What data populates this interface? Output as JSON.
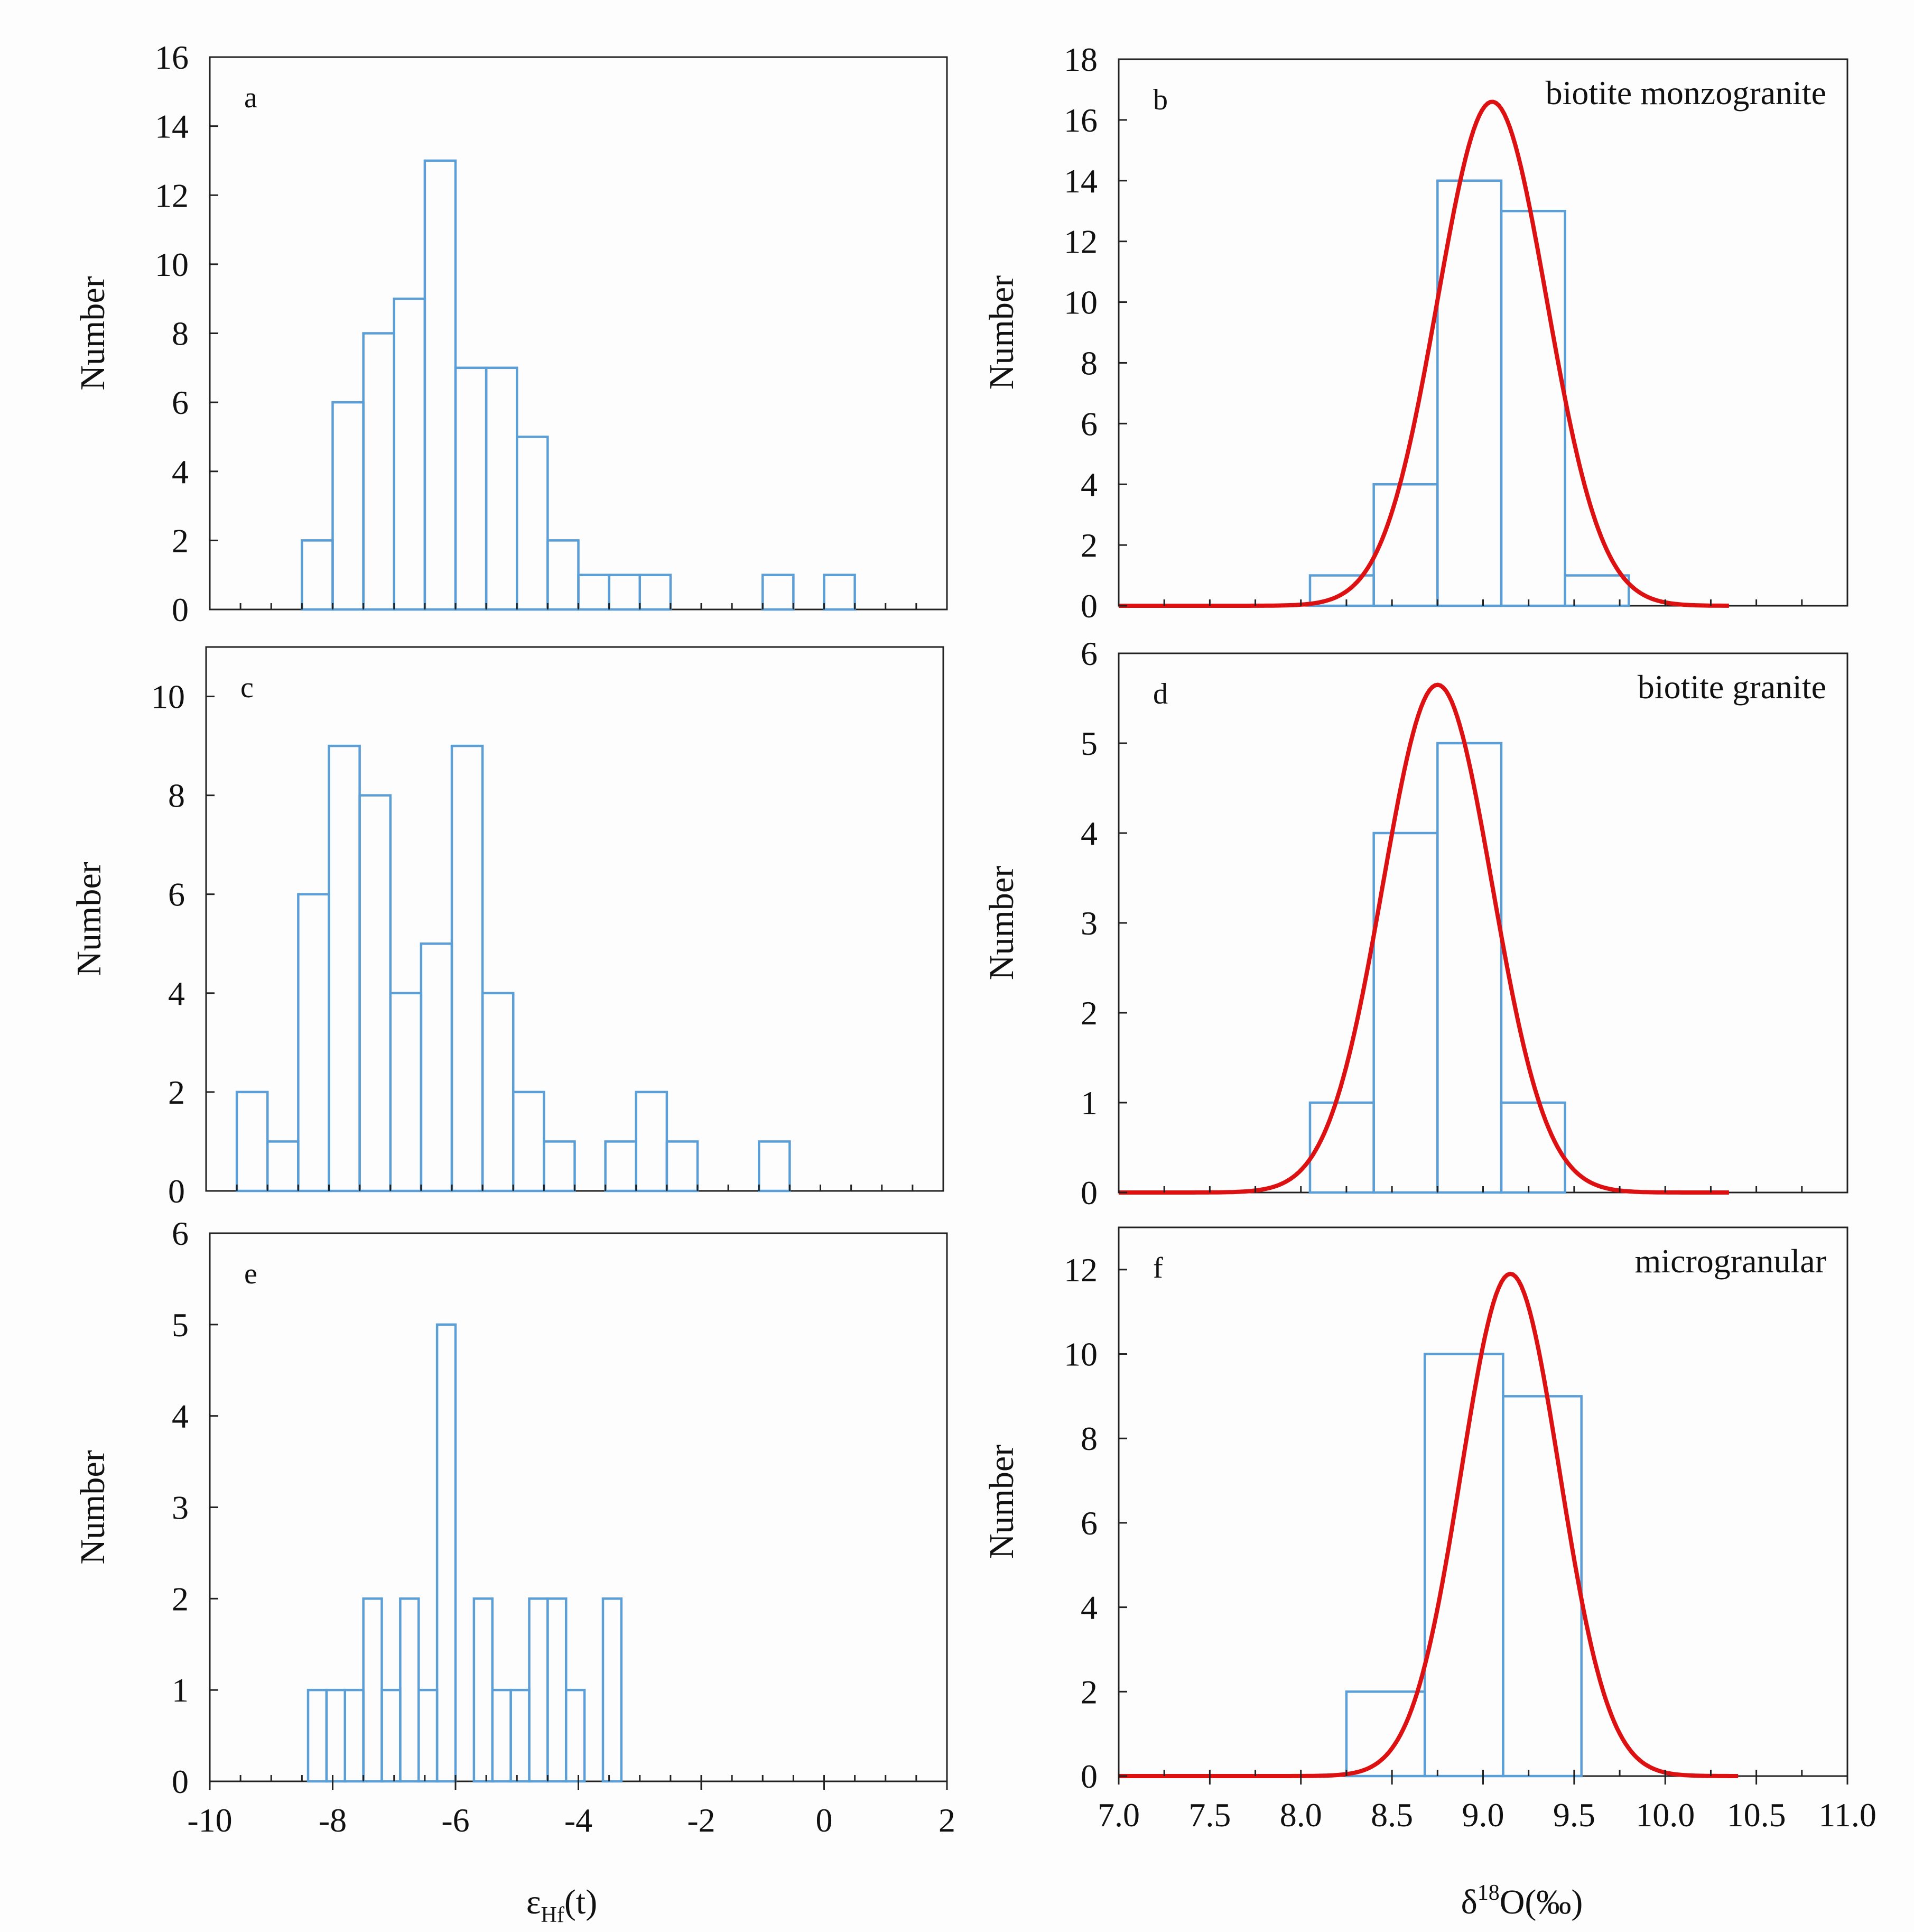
{
  "styles": {
    "bar_stroke": "#5b9fd6",
    "curve_stroke": "#dd1111",
    "axis_color": "#222222"
  },
  "axis_titles": {
    "left_x": {
      "main": "ε",
      "sub": "Hf",
      "tail": "(t)"
    },
    "right_x": {
      "pre": "δ",
      "sup": "18",
      "tail": "O(‰)"
    }
  },
  "chart_data": [
    {
      "id": "a",
      "panel_label": "a",
      "type": "bar",
      "title": "",
      "ylabel": "Number",
      "xlim": [
        -10,
        2
      ],
      "ylim": [
        0,
        16
      ],
      "yticks": [
        0,
        2,
        4,
        6,
        8,
        10,
        12,
        14,
        16
      ],
      "bin_edges": [
        -8.5,
        -8.0,
        -7.5,
        -7.0,
        -6.5,
        -6.0,
        -5.5,
        -5.0,
        -4.5,
        -4.0,
        -3.5,
        -3.0,
        -2.5,
        -1.0,
        -0.5,
        0.0,
        0.5
      ],
      "bars": [
        {
          "x0": -8.5,
          "x1": -8.0,
          "v": 2
        },
        {
          "x0": -8.0,
          "x1": -7.5,
          "v": 6
        },
        {
          "x0": -7.5,
          "x1": -7.0,
          "v": 8
        },
        {
          "x0": -7.0,
          "x1": -6.5,
          "v": 9
        },
        {
          "x0": -6.5,
          "x1": -6.0,
          "v": 13
        },
        {
          "x0": -6.0,
          "x1": -5.5,
          "v": 7
        },
        {
          "x0": -5.5,
          "x1": -5.0,
          "v": 7
        },
        {
          "x0": -5.0,
          "x1": -4.5,
          "v": 5
        },
        {
          "x0": -4.5,
          "x1": -4.0,
          "v": 2
        },
        {
          "x0": -4.0,
          "x1": -3.5,
          "v": 1
        },
        {
          "x0": -3.5,
          "x1": -3.0,
          "v": 1
        },
        {
          "x0": -3.0,
          "x1": -2.5,
          "v": 1
        },
        {
          "x0": -1.0,
          "x1": -0.5,
          "v": 1
        },
        {
          "x0": 0.0,
          "x1": 0.5,
          "v": 1
        }
      ]
    },
    {
      "id": "b",
      "panel_label": "b",
      "type": "bar",
      "title": "biotite monzogranite",
      "ylabel": "Number",
      "xlim": [
        7.0,
        11.0
      ],
      "ylim": [
        0,
        18
      ],
      "yticks": [
        0,
        2,
        4,
        6,
        8,
        10,
        12,
        14,
        16,
        18
      ],
      "bars": [
        {
          "x0": 8.05,
          "x1": 8.4,
          "v": 1
        },
        {
          "x0": 8.4,
          "x1": 8.75,
          "v": 4
        },
        {
          "x0": 8.75,
          "x1": 9.1,
          "v": 14
        },
        {
          "x0": 9.1,
          "x1": 9.45,
          "v": 13
        },
        {
          "x0": 9.45,
          "x1": 9.8,
          "v": 1
        }
      ],
      "fit_curve": {
        "type": "normal",
        "mean": 9.05,
        "sd": 0.3,
        "peak": 16.6,
        "x_range": [
          7.0,
          10.35
        ]
      }
    },
    {
      "id": "c",
      "panel_label": "c",
      "type": "bar",
      "title": "",
      "ylabel": "Number",
      "xlim": [
        -10,
        2
      ],
      "ylim": [
        0,
        11
      ],
      "yticks": [
        0,
        2,
        4,
        6,
        8,
        10
      ],
      "bars": [
        {
          "x0": -9.5,
          "x1": -9.0,
          "v": 2
        },
        {
          "x0": -9.0,
          "x1": -8.5,
          "v": 1
        },
        {
          "x0": -8.5,
          "x1": -8.0,
          "v": 6
        },
        {
          "x0": -8.0,
          "x1": -7.5,
          "v": 9
        },
        {
          "x0": -7.5,
          "x1": -7.0,
          "v": 8
        },
        {
          "x0": -7.0,
          "x1": -6.5,
          "v": 4
        },
        {
          "x0": -6.5,
          "x1": -6.0,
          "v": 5
        },
        {
          "x0": -6.0,
          "x1": -5.5,
          "v": 9
        },
        {
          "x0": -5.5,
          "x1": -5.0,
          "v": 4
        },
        {
          "x0": -5.0,
          "x1": -4.5,
          "v": 2
        },
        {
          "x0": -4.5,
          "x1": -4.0,
          "v": 1
        },
        {
          "x0": -3.5,
          "x1": -3.0,
          "v": 1
        },
        {
          "x0": -3.0,
          "x1": -2.5,
          "v": 2
        },
        {
          "x0": -2.5,
          "x1": -2.0,
          "v": 1
        },
        {
          "x0": -1.0,
          "x1": -0.5,
          "v": 1
        }
      ]
    },
    {
      "id": "d",
      "panel_label": "d",
      "type": "bar",
      "title": "biotite granite",
      "ylabel": "Number",
      "xlim": [
        7.0,
        11.0
      ],
      "ylim": [
        0,
        6
      ],
      "yticks": [
        0,
        1,
        2,
        3,
        4,
        5,
        6
      ],
      "bars": [
        {
          "x0": 8.05,
          "x1": 8.4,
          "v": 1
        },
        {
          "x0": 8.4,
          "x1": 8.75,
          "v": 4
        },
        {
          "x0": 8.75,
          "x1": 9.1,
          "v": 5
        },
        {
          "x0": 9.1,
          "x1": 9.45,
          "v": 1
        }
      ],
      "fit_curve": {
        "type": "normal",
        "mean": 8.75,
        "sd": 0.3,
        "peak": 5.65,
        "x_range": [
          7.0,
          10.35
        ]
      }
    },
    {
      "id": "e",
      "panel_label": "e",
      "type": "bar",
      "title": "",
      "ylabel": "Number",
      "xlim": [
        -10,
        2
      ],
      "ylim": [
        0,
        6
      ],
      "xticks": [
        -10,
        -8,
        -6,
        -4,
        -2,
        0,
        2
      ],
      "yticks": [
        0,
        1,
        2,
        3,
        4,
        5,
        6
      ],
      "bars": [
        {
          "x0": -8.4,
          "x1": -8.1,
          "v": 1
        },
        {
          "x0": -8.1,
          "x1": -7.8,
          "v": 1
        },
        {
          "x0": -7.8,
          "x1": -7.5,
          "v": 1
        },
        {
          "x0": -7.5,
          "x1": -7.2,
          "v": 2
        },
        {
          "x0": -7.2,
          "x1": -6.9,
          "v": 1
        },
        {
          "x0": -6.9,
          "x1": -6.6,
          "v": 2
        },
        {
          "x0": -6.6,
          "x1": -6.3,
          "v": 1
        },
        {
          "x0": -6.3,
          "x1": -6.0,
          "v": 5
        },
        {
          "x0": -5.7,
          "x1": -5.4,
          "v": 2
        },
        {
          "x0": -5.4,
          "x1": -5.1,
          "v": 1
        },
        {
          "x0": -5.1,
          "x1": -4.8,
          "v": 1
        },
        {
          "x0": -4.8,
          "x1": -4.5,
          "v": 2
        },
        {
          "x0": -4.5,
          "x1": -4.2,
          "v": 2
        },
        {
          "x0": -4.2,
          "x1": -3.9,
          "v": 1
        },
        {
          "x0": -3.6,
          "x1": -3.3,
          "v": 2
        }
      ]
    },
    {
      "id": "f",
      "panel_label": "f",
      "type": "bar",
      "title": "microgranular",
      "ylabel": "Number",
      "xlim": [
        7.0,
        11.0
      ],
      "ylim": [
        0,
        13
      ],
      "xticks": [
        "7.0",
        "7.5",
        "8.0",
        "8.5",
        "9.0",
        "9.5",
        "10.0",
        "10.5",
        "11.0"
      ],
      "yticks": [
        0,
        2,
        4,
        6,
        8,
        10,
        12
      ],
      "bars": [
        {
          "x0": 8.25,
          "x1": 8.68,
          "v": 2
        },
        {
          "x0": 8.68,
          "x1": 9.11,
          "v": 10
        },
        {
          "x0": 9.11,
          "x1": 9.54,
          "v": 9
        }
      ],
      "fit_curve": {
        "type": "normal",
        "mean": 9.15,
        "sd": 0.27,
        "peak": 11.9,
        "x_range": [
          7.0,
          10.4
        ]
      }
    }
  ]
}
